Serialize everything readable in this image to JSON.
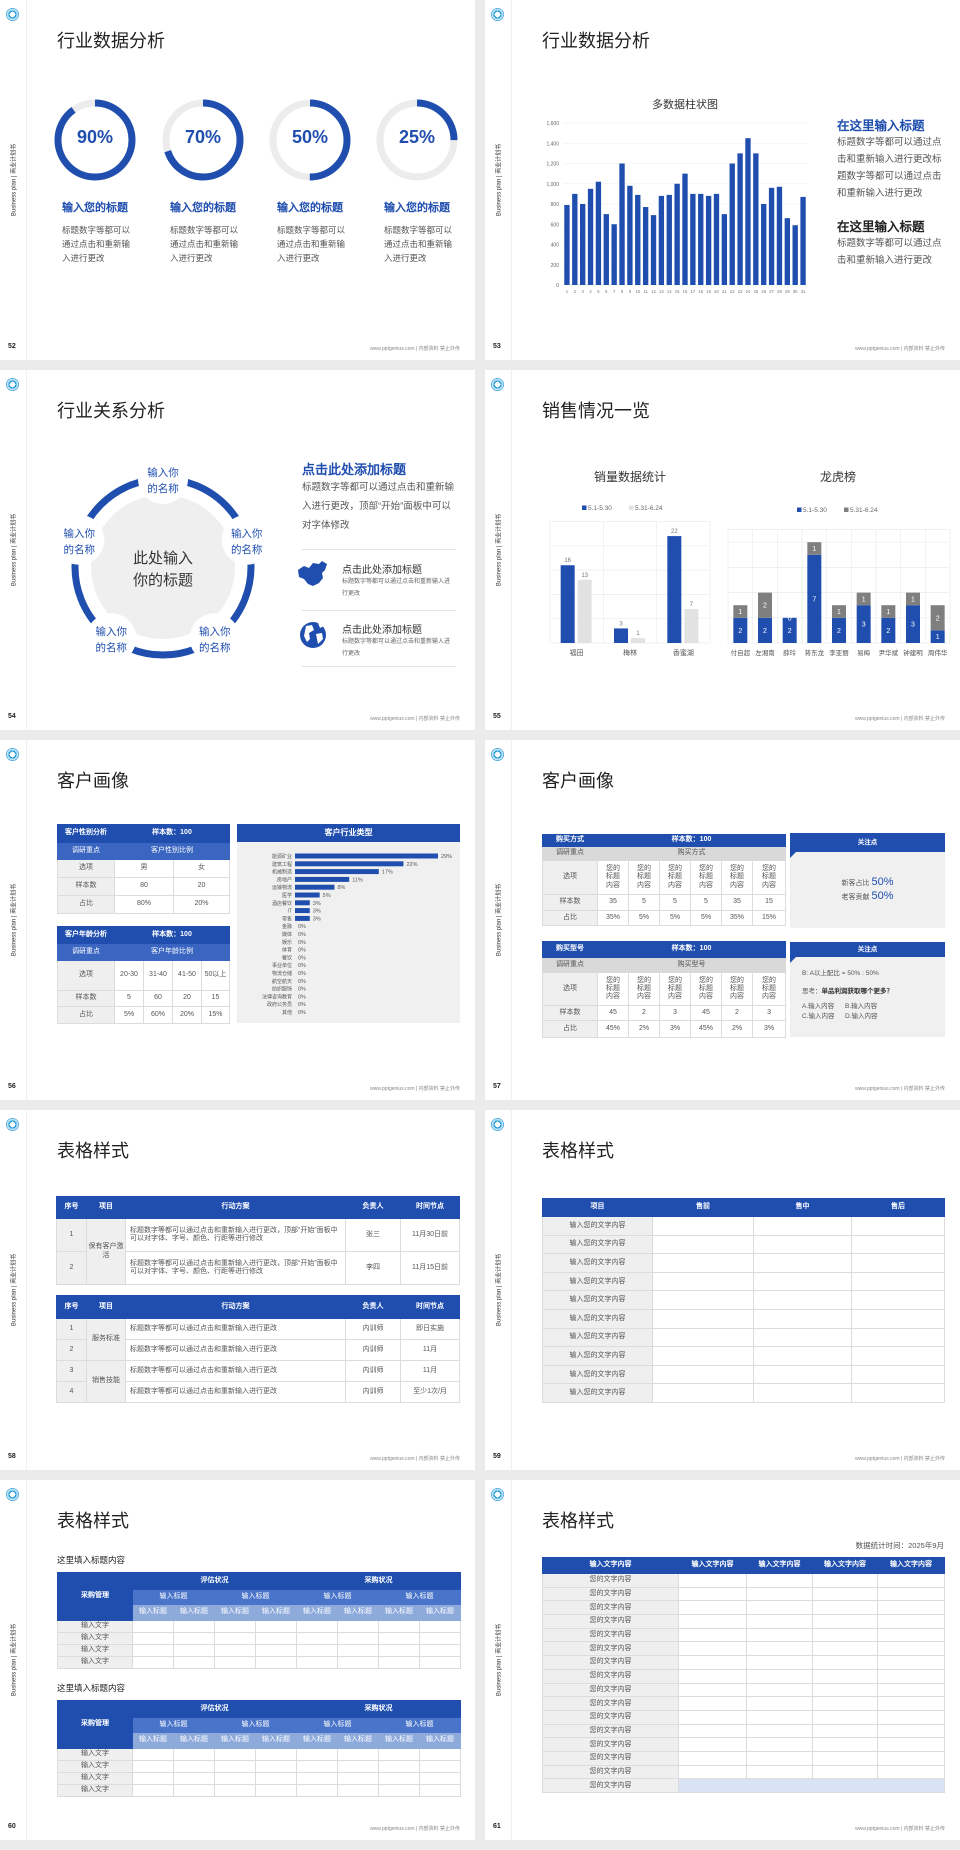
{
  "common": {
    "side_label": "Business plan | 商业计划书",
    "footer": "www.pptgenius.com | 内部资料 禁止外传",
    "logo_icon": "circular-logo-icon"
  },
  "colors": {
    "primary": "#1f4eaf",
    "secondary_gray": "#7f7f7f",
    "light_gray": "#e2e2e2",
    "panel_gray": "#f0f0f0"
  },
  "slides": {
    "s52": {
      "page": "52",
      "title": "行业数据分析",
      "items": [
        {
          "percent": 90,
          "label": "90%",
          "title": "输入您的标题",
          "desc": "标题数字等都可以通过点击和重新输入进行更改"
        },
        {
          "percent": 70,
          "label": "70%",
          "title": "输入您的标题",
          "desc": "标题数字等都可以通过点击和重新输入进行更改"
        },
        {
          "percent": 50,
          "label": "50%",
          "title": "输入您的标题",
          "desc": "标题数字等都可以通过点击和重新输入进行更改"
        },
        {
          "percent": 25,
          "label": "25%",
          "title": "输入您的标题",
          "desc": "标题数字等都可以通过点击和重新输入进行更改"
        }
      ]
    },
    "s53": {
      "page": "53",
      "title": "行业数据分析",
      "blocks": [
        {
          "title": "在这里输入标题",
          "text": "标题数字等都可以通过点击和重新输入进行更改标题数字等都可以通过点击和重新输入进行更改"
        },
        {
          "title": "在这里输入标题",
          "text": "标题数字等都可以通过点击和重新输入进行更改"
        }
      ]
    },
    "s54": {
      "page": "54",
      "title": "行业关系分析",
      "center": [
        "此处输入",
        "你的标题"
      ],
      "nodes": [
        [
          "输入你",
          "的名称"
        ],
        [
          "输入你",
          "的名称"
        ],
        [
          "输入你",
          "的名称"
        ],
        [
          "输入你",
          "的名称"
        ],
        [
          "输入你",
          "的名称"
        ]
      ],
      "heading": "点击此处添加标题",
      "heading_text": "标题数字等都可以通过点击和重新输入进行更改，顶部“开始”面板中可以对字体修改",
      "list": [
        {
          "icon": "china-map-icon",
          "title": "点击此处添加标题",
          "text": "标题数字等都可以通过点击和重新输入进行更改"
        },
        {
          "icon": "globe-icon",
          "title": "点击此处添加标题",
          "text": "标题数字等都可以通过点击和重新输入进行更改"
        }
      ]
    },
    "s55": {
      "page": "55",
      "title": "销售情况一览"
    },
    "s56": {
      "page": "56",
      "title": "客户画像",
      "gender": {
        "title": "客户性别分析",
        "sample": "样本数：100",
        "focus_label": "调研重点",
        "focus": "客户性别比例",
        "rows": [
          [
            "选项",
            "男",
            "女"
          ],
          [
            "样本数",
            "80",
            "20"
          ],
          [
            "占比",
            "80%",
            "20%"
          ]
        ]
      },
      "age": {
        "title": "客户年龄分析",
        "sample": "样本数：100",
        "focus_label": "调研重点",
        "focus": "客户年龄比例",
        "rows": [
          [
            "选项",
            "20-30",
            "31-40",
            "41-50",
            "50以上"
          ],
          [
            "样本数",
            "5",
            "60",
            "20",
            "15"
          ],
          [
            "占比",
            "5%",
            "60%",
            "20%",
            "15%"
          ]
        ]
      },
      "industry_title": "客户行业类型"
    },
    "s57": {
      "page": "57",
      "title": "客户画像",
      "t1": {
        "title": "购买方式",
        "sample": "样本数：100",
        "focus_label": "调研重点",
        "focus": "购买方式",
        "rows": [
          [
            "选项",
            "您的标题内容",
            "您的标题内容",
            "您的标题内容",
            "您的标题内容",
            "您的标题内容",
            "您的标题内容"
          ],
          [
            "样本数",
            "35",
            "5",
            "5",
            "5",
            "35",
            "15"
          ],
          [
            "占比",
            "35%",
            "5%",
            "5%",
            "5%",
            "35%",
            "15%"
          ]
        ]
      },
      "t2": {
        "title": "购买型号",
        "sample": "样本数：100",
        "focus_label": "调研重点",
        "focus": "购买型号",
        "rows": [
          [
            "选项",
            "您的标题内容",
            "您的标题内容",
            "您的标题内容",
            "您的标题内容",
            "您的标题内容",
            "您的标题内容"
          ],
          [
            "样本数",
            "45",
            "2",
            "3",
            "45",
            "2",
            "3"
          ],
          [
            "占比",
            "45%",
            "2%",
            "3%",
            "45%",
            "2%",
            "3%"
          ]
        ]
      },
      "panel1": {
        "header": "关注点",
        "lines": [
          {
            "label": "新客占比",
            "value": "50%"
          },
          {
            "label": "老客贡献",
            "value": "50%"
          }
        ]
      },
      "panel2": {
        "header": "关注点",
        "ratio": "B: A以上配比 = 50% : 50%",
        "question_label": "思考：",
        "question": "单品利润获取哪个更多？",
        "options": [
          "A.输入内容",
          "B.输入内容",
          "C.输入内容",
          "D.输入内容"
        ]
      }
    },
    "s58": {
      "page": "58",
      "title": "表格样式",
      "headers": [
        "序号",
        "项目",
        "行动方案",
        "负责人",
        "时间节点"
      ],
      "t1": {
        "projects": [
          "保有客户激活"
        ],
        "rows": [
          {
            "no": "1",
            "plan": "标题数字等都可以通过点击和重新输入进行更改，顶部“开始”面板中可以对字体、字号、颜色、行距等进行修改",
            "owner": "张三",
            "time": "11月30日前"
          },
          {
            "no": "2",
            "plan": "标题数字等都可以通过点击和重新输入进行更改，顶部“开始”面板中可以对字体、字号、颜色、行距等进行修改",
            "owner": "李四",
            "time": "11月15日前"
          }
        ]
      },
      "t2": {
        "projects": [
          "服务标准",
          "销售技能"
        ],
        "rows": [
          {
            "no": "1",
            "plan": "标题数字等都可以通过点击和重新输入进行更改",
            "owner": "内训师",
            "time": "即日实施"
          },
          {
            "no": "2",
            "plan": "标题数字等都可以通过点击和重新输入进行更改",
            "owner": "内训师",
            "time": "11月"
          },
          {
            "no": "3",
            "plan": "标题数字等都可以通过点击和重新输入进行更改",
            "owner": "内训师",
            "time": "11月"
          },
          {
            "no": "4",
            "plan": "标题数字等都可以通过点击和重新输入进行更改",
            "owner": "内训师",
            "time": "至少1次/月"
          }
        ]
      }
    },
    "s59": {
      "page": "59",
      "title": "表格样式",
      "headers": [
        "项目",
        "售前",
        "售中",
        "售后"
      ],
      "rows": [
        "输入您的文字内容",
        "输入您的文字内容",
        "输入您的文字内容",
        "输入您的文字内容",
        "输入您的文字内容",
        "输入您的文字内容",
        "输入您的文字内容",
        "输入您的文字内容",
        "输入您的文字内容",
        "输入您的文字内容"
      ]
    },
    "s60": {
      "page": "60",
      "title": "表格样式",
      "tables": [
        {
          "subtitle": "这里填入标题内容",
          "corner": "采购管理",
          "groups": [
            "评估状况",
            "采购状况"
          ],
          "sub": [
            "输入标题",
            "输入标题",
            "输入标题",
            "输入标题"
          ],
          "subsub": [
            "输入标题",
            "输入标题",
            "输入标题",
            "输入标题",
            "输入标题",
            "输入标题",
            "输入标题",
            "输入标题"
          ],
          "rows": [
            "输入文字",
            "输入文字",
            "输入文字",
            "输入文字"
          ]
        },
        {
          "subtitle": "这里填入标题内容",
          "corner": "采购管理",
          "groups": [
            "评估状况",
            "采购状况"
          ],
          "sub": [
            "输入标题",
            "输入标题",
            "输入标题",
            "输入标题"
          ],
          "subsub": [
            "输入标题",
            "输入标题",
            "输入标题",
            "输入标题",
            "输入标题",
            "输入标题",
            "输入标题",
            "输入标题"
          ],
          "rows": [
            "输入文字",
            "输入文字",
            "输入文字",
            "输入文字"
          ]
        }
      ]
    },
    "s61": {
      "page": "61",
      "title": "表格样式",
      "date": "数据统计时间：2025年9月",
      "headers": [
        "输入文字内容",
        "输入文字内容",
        "输入文字内容",
        "输入文字内容",
        "输入文字内容"
      ],
      "rows": [
        "您的文字内容",
        "您的文字内容",
        "您的文字内容",
        "您的文字内容",
        "您的文字内容",
        "您的文字内容",
        "您的文字内容",
        "您的文字内容",
        "您的文字内容",
        "您的文字内容",
        "您的文字内容",
        "您的文字内容",
        "您的文字内容",
        "您的文字内容",
        "您的文字内容",
        "您的文字内容"
      ]
    }
  },
  "chart_data": [
    {
      "type": "bar",
      "title": "多数据柱状图",
      "xlabel": "",
      "ylabel": "",
      "ylim": [
        0,
        1600
      ],
      "yticks": [
        0,
        200,
        400,
        600,
        800,
        1000,
        1200,
        1400,
        1600
      ],
      "grid": true,
      "categories": [
        "1",
        "2",
        "3",
        "4",
        "5",
        "6",
        "7",
        "8",
        "9",
        "10",
        "11",
        "12",
        "13",
        "14",
        "15",
        "16",
        "17",
        "18",
        "19",
        "20",
        "21",
        "22",
        "23",
        "24",
        "25",
        "26",
        "27",
        "28",
        "29",
        "30",
        "31"
      ],
      "values": [
        790,
        900,
        800,
        950,
        1020,
        700,
        600,
        1200,
        980,
        890,
        770,
        690,
        880,
        890,
        1000,
        1100,
        900,
        900,
        880,
        900,
        700,
        1200,
        1300,
        1450,
        1300,
        800,
        960,
        970,
        660,
        590,
        870
      ],
      "color": "#1f4eaf"
    },
    {
      "type": "bar",
      "title": "销量数据统计",
      "legend": "top",
      "grid": true,
      "categories": [
        "福田",
        "梅林",
        "香蜜湖"
      ],
      "series": [
        {
          "name": "5.1-5.30",
          "values": [
            16,
            3,
            22
          ],
          "color": "#1f4eaf"
        },
        {
          "name": "5.31-6.24",
          "values": [
            13,
            1,
            7
          ],
          "color": "#e2e2e2"
        }
      ]
    },
    {
      "type": "bar",
      "stacked": true,
      "title": "龙虎榜",
      "legend": "top",
      "grid": true,
      "categories": [
        "付自超",
        "左湘南",
        "薛玲",
        "蒋东龙",
        "李亚丽",
        "易梅",
        "尹华斌",
        "钟建明",
        "周伟华"
      ],
      "series": [
        {
          "name": "5.1-5.30",
          "values": [
            2,
            2,
            2,
            7,
            2,
            3,
            2,
            3,
            1
          ],
          "color": "#1f4eaf"
        },
        {
          "name": "5.31-6.24",
          "values": [
            1,
            2,
            0,
            1,
            1,
            1,
            1,
            1,
            2
          ],
          "color": "#7f7f7f"
        }
      ]
    },
    {
      "type": "bar",
      "orientation": "horizontal",
      "title": "客户行业类型",
      "categories": [
        "能源矿业",
        "建筑工程",
        "机械制造",
        "房地产",
        "运输物流",
        "医学",
        "酒店餐饮",
        "IT",
        "零售",
        "金融",
        "媒体",
        "娱乐",
        "体育",
        "餐饮",
        "事业单位",
        "物流仓储",
        "航空航天",
        "纺织服饰",
        "法律咨询教育",
        "政府公务员",
        "其他"
      ],
      "values": [
        29,
        22,
        17,
        11,
        8,
        5,
        3,
        3,
        3,
        0,
        0,
        0,
        0,
        0,
        0,
        0,
        0,
        0,
        0,
        0,
        0
      ],
      "unit": "%",
      "color": "#1f4eaf"
    }
  ]
}
